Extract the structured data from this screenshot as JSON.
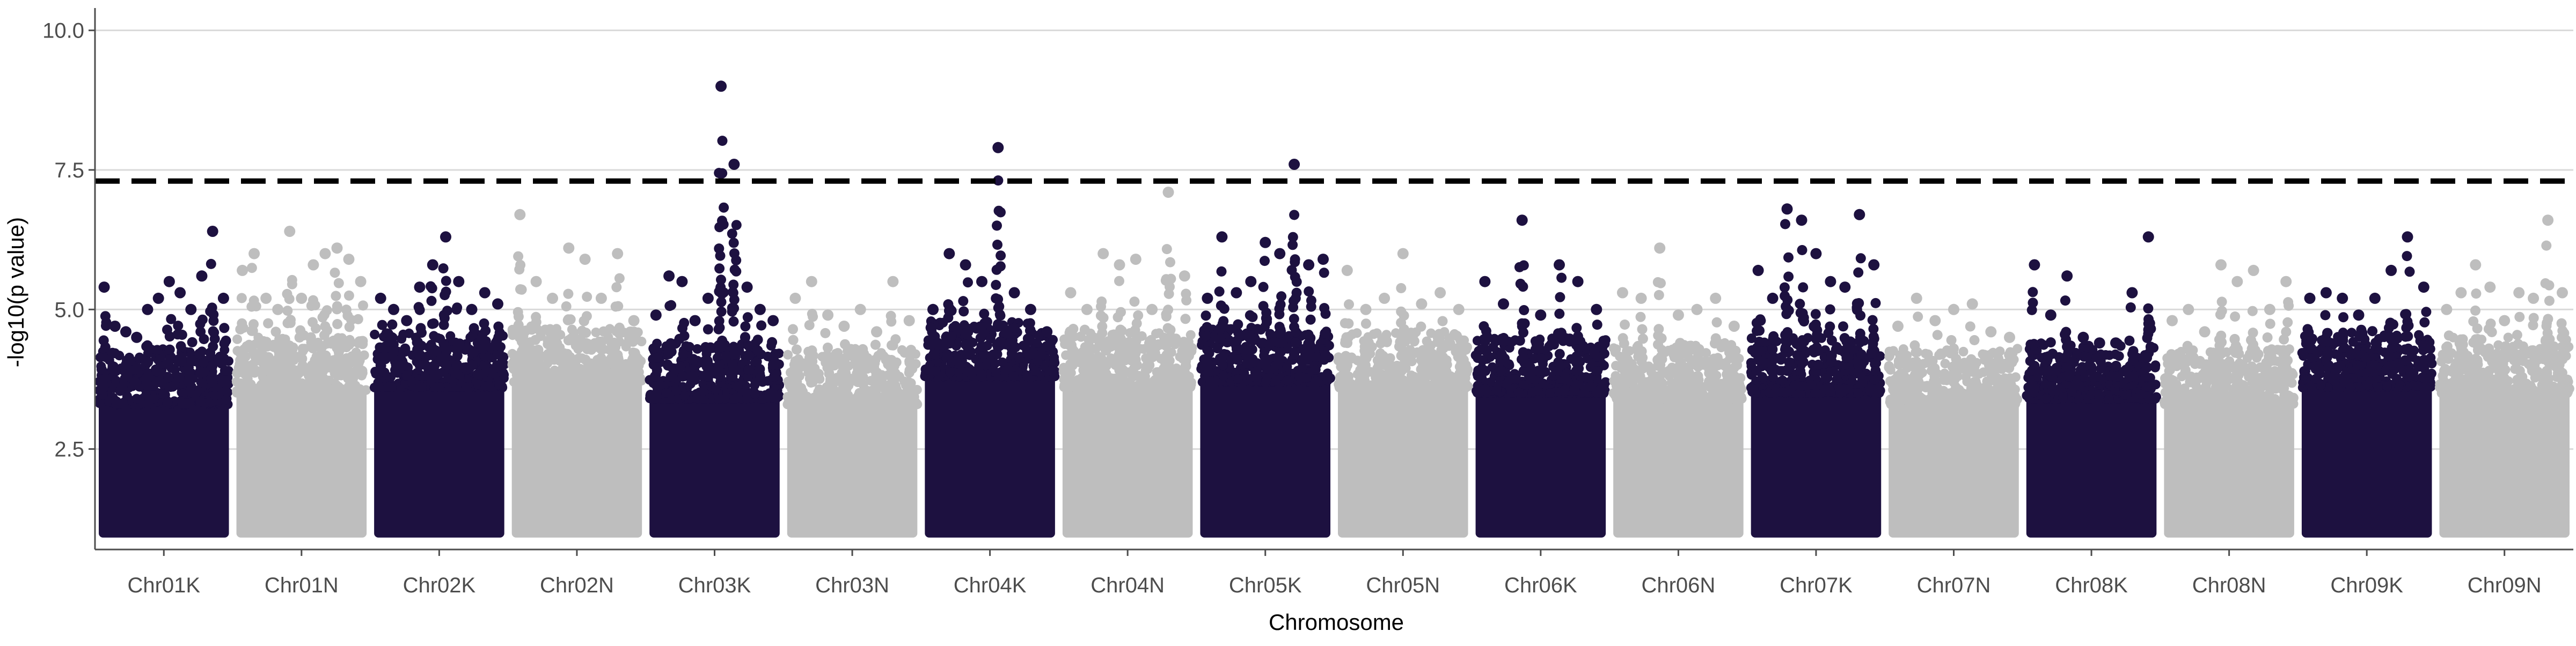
{
  "chart_data": {
    "type": "scatter",
    "subtype": "manhattan",
    "xlabel": "Chromosome",
    "ylabel": "-log10(p value)",
    "ylim": [
      0.7,
      10.4
    ],
    "y_ticks": [
      2.5,
      5.0,
      7.5,
      10.0
    ],
    "y_tick_labels": [
      "2.5",
      "5.0",
      "7.5",
      "10.0"
    ],
    "grid": "horizontal major gridlines only",
    "legend": "none",
    "significance_threshold": 7.3,
    "threshold_style": "black dashed line",
    "point_floor": 1.0,
    "colors": {
      "odd": "#1d1140",
      "even": "#bebebe",
      "threshold": "#000000",
      "grid": "#d9d9d9",
      "axis": "#4d4d4d"
    },
    "categories": [
      "Chr01K",
      "Chr01N",
      "Chr02K",
      "Chr02N",
      "Chr03K",
      "Chr03N",
      "Chr04K",
      "Chr04N",
      "Chr05K",
      "Chr05N",
      "Chr06K",
      "Chr06N",
      "Chr07K",
      "Chr07N",
      "Chr08K",
      "Chr08N",
      "Chr09K",
      "Chr09N"
    ],
    "series": [
      {
        "chromosome": "Chr01K",
        "color": "dark",
        "dense_max": 4.0,
        "peaks": [
          5.4,
          4.7,
          4.6,
          4.5,
          5.0,
          5.2,
          5.5,
          5.3,
          5.0,
          5.6,
          6.4,
          5.2
        ]
      },
      {
        "chromosome": "Chr01N",
        "color": "gray",
        "dense_max": 4.2,
        "peaks": [
          5.7,
          6.0,
          5.2,
          5.0,
          6.4,
          5.2,
          5.8,
          6.0,
          6.1,
          5.9,
          5.5
        ]
      },
      {
        "chromosome": "Chr02K",
        "color": "dark",
        "dense_max": 4.3,
        "peaks": [
          5.2,
          5.0,
          4.8,
          5.4,
          5.8,
          6.3,
          5.5,
          5.0,
          5.3,
          5.1
        ]
      },
      {
        "chromosome": "Chr02N",
        "color": "gray",
        "dense_max": 4.4,
        "peaks": [
          6.7,
          5.5,
          5.2,
          6.1,
          5.9,
          5.2,
          6.0,
          4.8
        ]
      },
      {
        "chromosome": "Chr03K",
        "color": "dark",
        "dense_max": 4.1,
        "peaks": [
          4.9,
          5.6,
          5.5,
          4.8,
          5.2,
          9.0,
          7.6,
          5.4,
          5.0,
          4.8
        ]
      },
      {
        "chromosome": "Chr03N",
        "color": "gray",
        "dense_max": 4.0,
        "peaks": [
          5.2,
          5.5,
          4.9,
          4.7,
          5.0,
          4.6,
          5.5,
          4.8
        ]
      },
      {
        "chromosome": "Chr04K",
        "color": "dark",
        "dense_max": 4.5,
        "peaks": [
          5.0,
          6.0,
          5.8,
          5.5,
          7.9,
          5.3,
          5.0,
          4.6
        ]
      },
      {
        "chromosome": "Chr04N",
        "color": "gray",
        "dense_max": 4.3,
        "peaks": [
          5.3,
          5.0,
          6.0,
          5.8,
          5.9,
          5.0,
          7.1,
          5.6
        ]
      },
      {
        "chromosome": "Chr05K",
        "color": "dark",
        "dense_max": 4.4,
        "peaks": [
          5.2,
          6.3,
          5.3,
          5.5,
          6.2,
          6.0,
          7.6,
          5.8,
          5.9
        ]
      },
      {
        "chromosome": "Chr05N",
        "color": "gray",
        "dense_max": 4.3,
        "peaks": [
          5.7,
          5.0,
          5.2,
          6.0,
          5.1,
          5.3,
          5.0
        ]
      },
      {
        "chromosome": "Chr06K",
        "color": "dark",
        "dense_max": 4.2,
        "peaks": [
          5.5,
          5.1,
          6.6,
          4.9,
          5.8,
          5.5,
          5.0
        ]
      },
      {
        "chromosome": "Chr06N",
        "color": "gray",
        "dense_max": 4.1,
        "peaks": [
          5.3,
          5.2,
          6.1,
          4.9,
          5.0,
          5.2,
          4.7
        ]
      },
      {
        "chromosome": "Chr07K",
        "color": "dark",
        "dense_max": 4.2,
        "peaks": [
          5.7,
          5.2,
          6.8,
          6.6,
          6.0,
          5.5,
          5.4,
          6.7,
          5.8
        ]
      },
      {
        "chromosome": "Chr07N",
        "color": "gray",
        "dense_max": 4.0,
        "peaks": [
          4.7,
          5.2,
          4.8,
          5.0,
          5.1,
          4.6,
          4.5
        ]
      },
      {
        "chromosome": "Chr08K",
        "color": "dark",
        "dense_max": 4.1,
        "peaks": [
          5.8,
          4.9,
          5.6,
          4.5,
          4.4,
          4.4,
          5.3,
          6.3
        ]
      },
      {
        "chromosome": "Chr08N",
        "color": "gray",
        "dense_max": 4.0,
        "peaks": [
          4.8,
          5.0,
          4.6,
          5.8,
          5.5,
          5.7,
          5.0,
          5.5
        ]
      },
      {
        "chromosome": "Chr09K",
        "color": "dark",
        "dense_max": 4.3,
        "peaks": [
          5.2,
          5.3,
          5.2,
          4.9,
          5.2,
          5.7,
          6.3,
          5.4
        ]
      },
      {
        "chromosome": "Chr09N",
        "color": "gray",
        "dense_max": 4.2,
        "peaks": [
          5.0,
          5.3,
          5.8,
          5.4,
          4.8,
          5.3,
          5.2,
          6.6,
          5.3
        ]
      }
    ]
  }
}
